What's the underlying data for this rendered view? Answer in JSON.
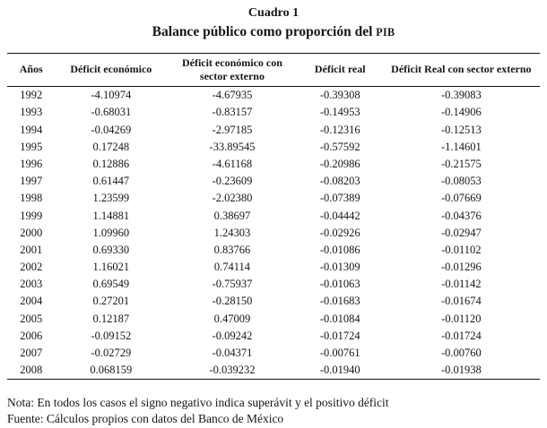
{
  "title": "Cuadro 1",
  "subtitle_prefix": "Balance público como proporción del ",
  "subtitle_smallcaps": "PIB",
  "table": {
    "headers": [
      "Años",
      "Déficit económico",
      "Déficit económico con sector externo",
      "Déficit real",
      "Déficit Real con sector externo"
    ],
    "rows": [
      [
        "1992",
        "-4.10974",
        "-4.67935",
        "-0.39308",
        "-0.39083"
      ],
      [
        "1993",
        "-0.68031",
        "-0.83157",
        "-0.14953",
        "-0.14906"
      ],
      [
        "1994",
        "-0.04269",
        "-2.97185",
        "-0.12316",
        "-0.12513"
      ],
      [
        "1995",
        "0.17248",
        "-33.89545",
        "-0.57592",
        "-1.14601"
      ],
      [
        "1996",
        "0.12886",
        "-4.61168",
        "-0.20986",
        "-0.21575"
      ],
      [
        "1997",
        "0.61447",
        "-0.23609",
        "-0.08203",
        "-0.08053"
      ],
      [
        "1998",
        "1.23599",
        "-2.02380",
        "-0.07389",
        "-0.07669"
      ],
      [
        "1999",
        "1.14881",
        "0.38697",
        "-0.04442",
        "-0.04376"
      ],
      [
        "2000",
        "1.09960",
        "1.24303",
        "-0.02926",
        "-0.02947"
      ],
      [
        "2001",
        "0.69330",
        "0.83766",
        "-0.01086",
        "-0.01102"
      ],
      [
        "2002",
        "1.16021",
        "0.74114",
        "-0.01309",
        "-0.01296"
      ],
      [
        "2003",
        "0.69549",
        "-0.75937",
        "-0.01063",
        "-0.01142"
      ],
      [
        "2004",
        "0.27201",
        "-0.28150",
        "-0.01683",
        "-0.01674"
      ],
      [
        "2005",
        "0.12187",
        "0.47009",
        "-0.01084",
        "-0.01120"
      ],
      [
        "2006",
        "-0.09152",
        "-0.09242",
        "-0.01724",
        "-0.01724"
      ],
      [
        "2007",
        "-0.02729",
        "-0.04371",
        "-0.00761",
        "-0.00760"
      ],
      [
        "2008",
        "0.068159",
        "-0.039232",
        "-0.01940",
        "-0.01938"
      ]
    ]
  },
  "notes": {
    "nota": "Nota: En todos los casos el signo negativo indica superávit y el positivo déficit",
    "fuente": "Fuente: Cálculos propios con datos del Banco de México"
  }
}
